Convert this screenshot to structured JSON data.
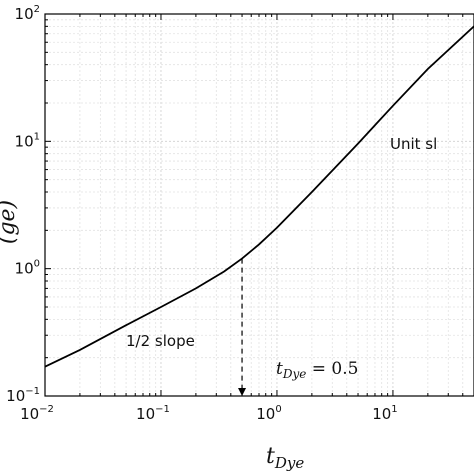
{
  "chart_data": {
    "type": "line",
    "xscale": "log",
    "yscale": "log",
    "xlim": [
      0.01,
      50
    ],
    "ylim": [
      0.1,
      100
    ],
    "x_ticks": [
      {
        "base": "10",
        "exp": "−2",
        "value": 0.01
      },
      {
        "base": "10",
        "exp": "−1",
        "value": 0.1
      },
      {
        "base": "10",
        "exp": "0",
        "value": 1
      },
      {
        "base": "10",
        "exp": "1",
        "value": 10
      }
    ],
    "y_ticks": [
      {
        "base": "10",
        "exp": "−1",
        "value": 0.1
      },
      {
        "base": "10",
        "exp": "0",
        "value": 1
      },
      {
        "base": "10",
        "exp": "1",
        "value": 10
      },
      {
        "base": "10",
        "exp": "2",
        "value": 100
      }
    ],
    "xlabel": {
      "main": "t",
      "sub": "Dye"
    },
    "ylabel": "(ge)",
    "grid": true,
    "series": [
      {
        "x": [
          0.01,
          0.02,
          0.05,
          0.1,
          0.2,
          0.35,
          0.5,
          0.7,
          1,
          2,
          5,
          10,
          20,
          50
        ],
        "y": [
          0.17,
          0.23,
          0.36,
          0.5,
          0.7,
          0.95,
          1.2,
          1.55,
          2.1,
          4.0,
          9.6,
          19,
          37,
          80
        ]
      }
    ],
    "marker_line": {
      "x": 0.5,
      "y_top": 1.2
    },
    "annotations": {
      "half_slope": "1/2 slope",
      "unit_slope": "Unit sl",
      "eq_var": "t",
      "eq_sub": "Dye",
      "eq_rhs": " = 0.5"
    }
  }
}
